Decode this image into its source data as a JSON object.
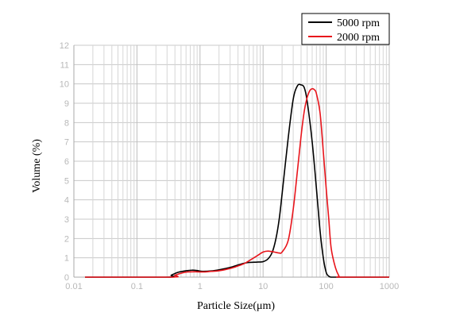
{
  "chart_data": {
    "type": "line",
    "xlabel": "Particle Size(μm)",
    "ylabel": "Volume (%)",
    "x_scale": "log",
    "xlim": [
      0.01,
      1000
    ],
    "ylim": [
      0,
      12
    ],
    "x_ticks": [
      0.01,
      0.1,
      1,
      10,
      100,
      1000
    ],
    "x_tick_labels": [
      "0.01",
      "0.1",
      "1",
      "10",
      "100",
      "1000"
    ],
    "y_ticks": [
      0,
      1,
      2,
      3,
      4,
      5,
      6,
      7,
      8,
      9,
      10,
      11,
      12
    ],
    "y_tick_labels": [
      "0",
      "1",
      "2",
      "3",
      "4",
      "5",
      "6",
      "7",
      "8",
      "9",
      "10",
      "11",
      "12"
    ],
    "grid": true,
    "legend_position": "top-right",
    "series": [
      {
        "name": "5000 rpm",
        "color": "#000000",
        "x": [
          0.015,
          0.3,
          0.35,
          0.45,
          0.6,
          0.75,
          0.9,
          1.1,
          1.5,
          2,
          3,
          4,
          5,
          6,
          8,
          10,
          12,
          14,
          16,
          18,
          20,
          25,
          30,
          35,
          40,
          45,
          50,
          60,
          70,
          80,
          90,
          100,
          110,
          120,
          150,
          1000
        ],
        "y": [
          0,
          0,
          0.1,
          0.25,
          0.33,
          0.36,
          0.34,
          0.3,
          0.32,
          0.38,
          0.5,
          0.63,
          0.72,
          0.76,
          0.78,
          0.8,
          0.95,
          1.3,
          2.0,
          3.0,
          4.3,
          7.2,
          9.2,
          9.9,
          9.95,
          9.8,
          9.1,
          7.0,
          4.6,
          2.4,
          1.0,
          0.25,
          0.05,
          0,
          0,
          0
        ]
      },
      {
        "name": "2000 rpm",
        "color": "#e8141b",
        "x": [
          0.015,
          0.34,
          0.4,
          0.5,
          0.6,
          0.8,
          1.0,
          1.2,
          1.5,
          2,
          3,
          4,
          5,
          6,
          8,
          10,
          12,
          15,
          18,
          20,
          25,
          30,
          35,
          40,
          45,
          50,
          55,
          60,
          65,
          70,
          80,
          90,
          100,
          110,
          120,
          140,
          160,
          170,
          1000
        ],
        "y": [
          0,
          0,
          0.1,
          0.2,
          0.26,
          0.28,
          0.27,
          0.27,
          0.3,
          0.33,
          0.45,
          0.58,
          0.7,
          0.85,
          1.1,
          1.3,
          1.35,
          1.3,
          1.25,
          1.3,
          1.9,
          3.5,
          5.5,
          7.3,
          8.6,
          9.3,
          9.65,
          9.75,
          9.7,
          9.5,
          8.5,
          6.5,
          4.6,
          3.0,
          1.5,
          0.5,
          0.05,
          0,
          0
        ]
      }
    ]
  }
}
